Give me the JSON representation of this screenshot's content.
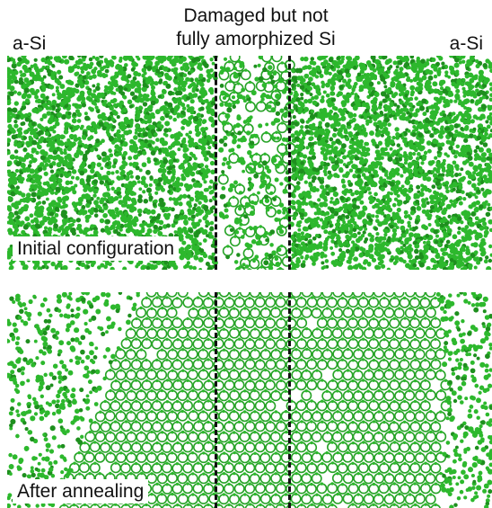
{
  "header": {
    "left_label": "a-Si",
    "right_label": "a-Si",
    "center_label_line1": "Damaged but not",
    "center_label_line2": "fully amorphized Si"
  },
  "panels": [
    {
      "caption": "Initial configuration"
    },
    {
      "caption": "After annealing"
    }
  ],
  "colors": {
    "atom": "#2db82d",
    "atom_dark": "#1e8f1e",
    "bond": "#27a327",
    "divider": "#111111",
    "background": "#ffffff"
  }
}
